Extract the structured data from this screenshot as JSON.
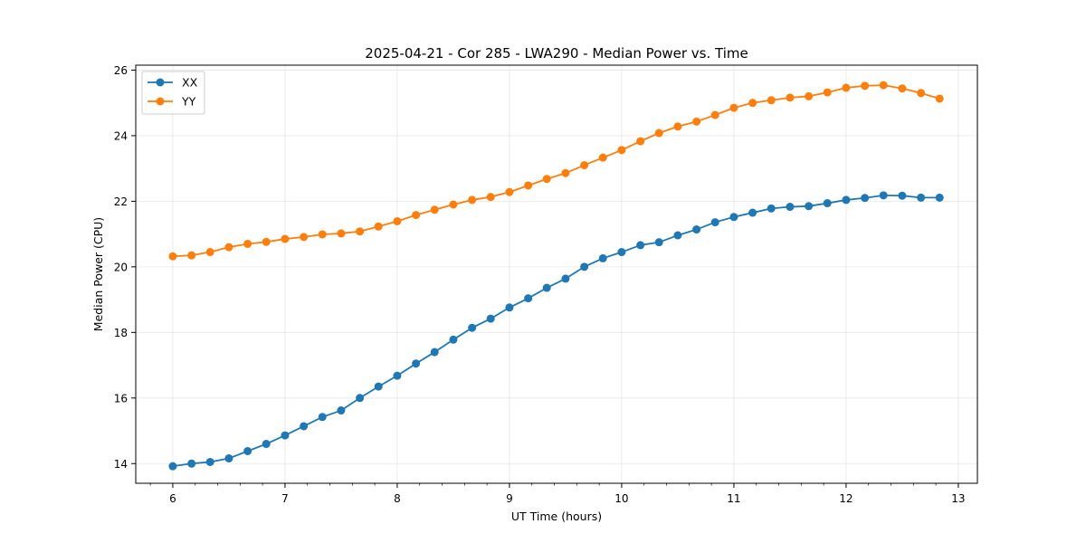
{
  "chart_data": {
    "type": "line",
    "title": "2025-04-21 - Cor 285 - LWA290 - Median Power vs. Time",
    "xlabel": "UT Time (hours)",
    "ylabel": "Median Power (CPU)",
    "xlim": [
      5.67,
      13.17
    ],
    "ylim": [
      13.4,
      26.15
    ],
    "xticks": [
      6,
      7,
      8,
      9,
      10,
      11,
      12,
      13
    ],
    "yticks": [
      14,
      16,
      18,
      20,
      22,
      24,
      26
    ],
    "grid": true,
    "legend_position": "top-left",
    "x": [
      6.0,
      6.167,
      6.333,
      6.5,
      6.667,
      6.833,
      7.0,
      7.167,
      7.333,
      7.5,
      7.667,
      7.833,
      8.0,
      8.167,
      8.333,
      8.5,
      8.667,
      8.833,
      9.0,
      9.167,
      9.333,
      9.5,
      9.667,
      9.833,
      10.0,
      10.167,
      10.333,
      10.5,
      10.667,
      10.833,
      11.0,
      11.167,
      11.333,
      11.5,
      11.667,
      11.833,
      12.0,
      12.167,
      12.333,
      12.5,
      12.667,
      12.833
    ],
    "series": [
      {
        "name": "XX",
        "color": "#1f77b4",
        "values": [
          13.92,
          14.0,
          14.05,
          14.16,
          14.38,
          14.6,
          14.86,
          15.14,
          15.42,
          15.62,
          16.0,
          16.35,
          16.68,
          17.05,
          17.4,
          17.78,
          18.14,
          18.42,
          18.76,
          19.04,
          19.36,
          19.64,
          20.0,
          20.26,
          20.45,
          20.66,
          20.75,
          20.96,
          21.14,
          21.36,
          21.52,
          21.65,
          21.78,
          21.83,
          21.85,
          21.94,
          22.04,
          22.1,
          22.18,
          22.17,
          22.11,
          22.11
        ]
      },
      {
        "name": "YY",
        "color": "#ff7f0e",
        "values": [
          20.32,
          20.35,
          20.45,
          20.6,
          20.7,
          20.76,
          20.85,
          20.91,
          20.99,
          21.02,
          21.08,
          21.23,
          21.39,
          21.58,
          21.74,
          21.9,
          22.04,
          22.13,
          22.28,
          22.48,
          22.68,
          22.86,
          23.1,
          23.33,
          23.56,
          23.83,
          24.08,
          24.28,
          24.43,
          24.63,
          24.85,
          25.0,
          25.08,
          25.16,
          25.2,
          25.32,
          25.46,
          25.52,
          25.54,
          25.44,
          25.3,
          25.13
        ]
      }
    ]
  }
}
